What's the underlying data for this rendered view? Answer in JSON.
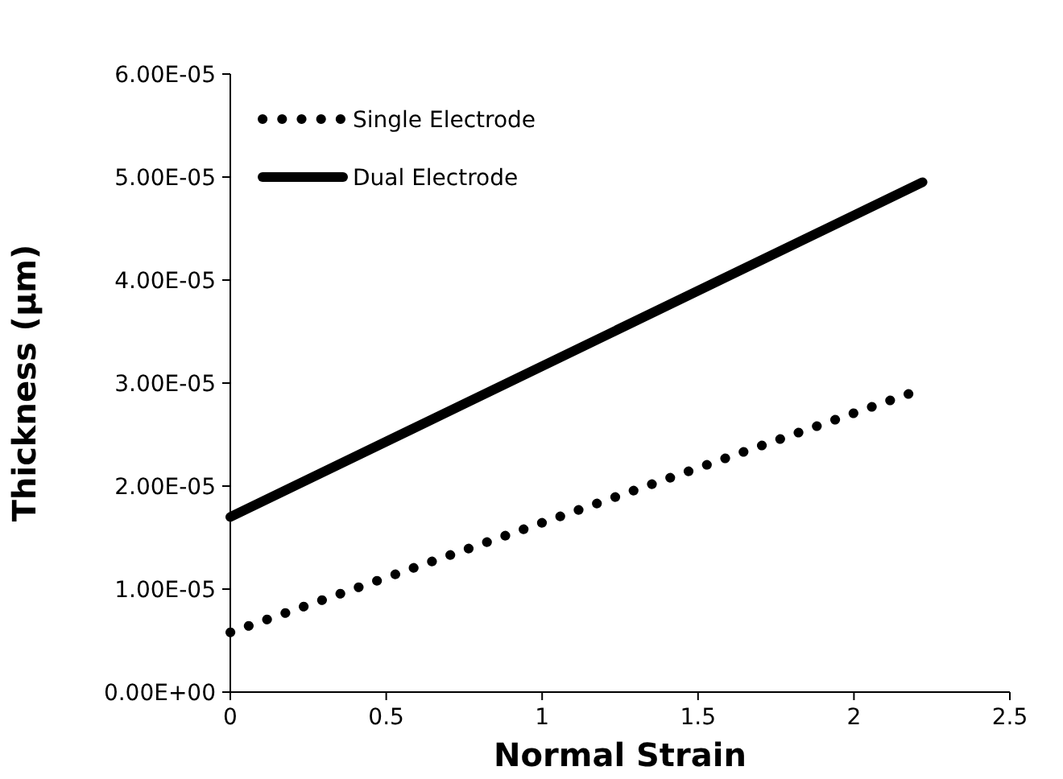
{
  "chart_data": {
    "type": "line",
    "xlabel": "Normal Strain",
    "ylabel": "Thickness (µm)",
    "xlim": [
      0,
      2.5
    ],
    "xticks": [
      0,
      0.5,
      1,
      1.5,
      2,
      2.5
    ],
    "ylim": [
      0,
      6e-05
    ],
    "yticks": [
      {
        "value": 0,
        "label": "0.00E+00"
      },
      {
        "value": 1e-05,
        "label": "1.00E-05"
      },
      {
        "value": 2e-05,
        "label": "2.00E-05"
      },
      {
        "value": 3e-05,
        "label": "3.00E-05"
      },
      {
        "value": 4e-05,
        "label": "4.00E-05"
      },
      {
        "value": 5e-05,
        "label": "5.00E-05"
      },
      {
        "value": 6e-05,
        "label": "6.00E-05"
      }
    ],
    "legend": "top left",
    "grid": false,
    "series": [
      {
        "name": "Single Electrode",
        "color": "#000000",
        "line_style": "dotted",
        "x": [
          0,
          2.18
        ],
        "values": [
          5.8e-06,
          2.9e-05
        ]
      },
      {
        "name": "Dual Electrode",
        "color": "#000000",
        "line_style": "solid",
        "x": [
          0,
          2.22
        ],
        "values": [
          1.7e-05,
          4.95e-05
        ]
      }
    ]
  }
}
